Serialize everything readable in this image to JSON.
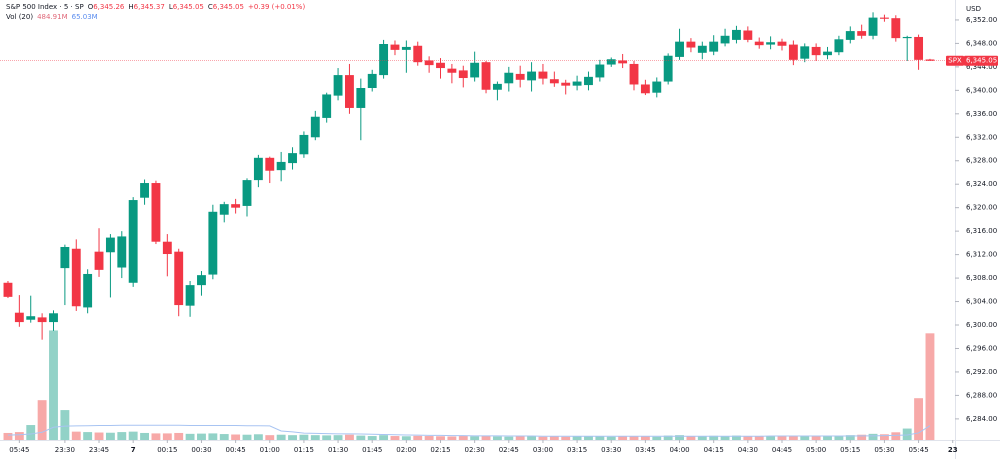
{
  "chart_data": {
    "type": "candlestick",
    "title": "S&P 500 Index · 5 · SP",
    "ohlc_header": [
      {
        "key": "O",
        "label": "6,345.26"
      },
      {
        "key": "H",
        "label": "6,345.37"
      },
      {
        "key": "L",
        "label": "6,345.05"
      },
      {
        "key": "C",
        "label": "6,345.05"
      }
    ],
    "change": "+0.39 (+0.01%)",
    "volume_label": "Vol (20)",
    "volume_value_label": "484.91M",
    "volume_ma_label": "65.03M",
    "currency": "USD",
    "price_tag": {
      "symbol": "SPX",
      "label": "6,345.05"
    },
    "up_color": "#089981",
    "down_color": "#f23645",
    "volume_up_color": "#92d2c7",
    "volume_down_color": "#f7a9a8",
    "volume_ma_color": "#a8c4f2",
    "open": [
      6307.2,
      6302.1,
      6300.9,
      6301.3,
      6300.5,
      6309.7,
      6313.0,
      6303.0,
      6312.5,
      6312.4,
      6309.8,
      6307.2,
      6321.7,
      6324.2,
      6314.2,
      6312.5,
      6303.3,
      6306.8,
      6308.6,
      6318.8,
      6320.6,
      6320.3,
      6324.7,
      6328.5,
      6326.4,
      6327.6,
      6329.1,
      6332.0,
      6335.3,
      6339.1,
      6342.6,
      6337.0,
      6340.4,
      6342.6,
      6347.8,
      6346.9,
      6347.6,
      6345.1,
      6344.7,
      6343.7,
      6343.4,
      6342.2,
      6344.8,
      6340.1,
      6341.2,
      6342.8,
      6341.7,
      6343.2,
      6341.9,
      6341.3,
      6340.8,
      6340.9,
      6342.2,
      6344.4,
      6345.1,
      6344.5,
      6341.0,
      6339.6,
      6341.5,
      6345.7,
      6348.3,
      6346.4,
      6346.6,
      6348.0,
      6348.6,
      6350.2,
      6348.3,
      6347.8,
      6348.3,
      6347.8,
      6345.4,
      6347.4,
      6346.0,
      6346.5,
      6348.6,
      6350.1,
      6349.3,
      6352.4,
      6352.3,
      6348.9,
      6349.1,
      6345.26
    ],
    "high": [
      6307.5,
      6305.1,
      6305.0,
      6302.0,
      6302.5,
      6313.7,
      6314.6,
      6309.5,
      6316.5,
      6315.5,
      6316.0,
      6321.8,
      6324.8,
      6324.6,
      6315.5,
      6313.0,
      6307.5,
      6309.2,
      6320.5,
      6321.0,
      6321.5,
      6325.0,
      6329.0,
      6328.7,
      6329.5,
      6330.3,
      6333.0,
      6336.5,
      6339.6,
      6343.8,
      6344.5,
      6342.0,
      6343.5,
      6348.6,
      6348.5,
      6348.5,
      6348.3,
      6345.8,
      6345.5,
      6344.5,
      6344.2,
      6346.6,
      6345.0,
      6341.5,
      6344.0,
      6344.2,
      6344.8,
      6344.5,
      6343.2,
      6341.8,
      6342.5,
      6343.2,
      6345.2,
      6345.6,
      6346.2,
      6345.0,
      6341.8,
      6342.2,
      6346.3,
      6350.5,
      6348.9,
      6348.3,
      6349.4,
      6350.5,
      6351.0,
      6350.9,
      6349.0,
      6349.2,
      6348.8,
      6348.5,
      6348.0,
      6348.0,
      6347.4,
      6349.3,
      6350.9,
      6351.2,
      6353.3,
      6352.9,
      6352.8,
      6349.3,
      6349.5,
      6345.37
    ],
    "low": [
      6304.6,
      6299.7,
      6300.4,
      6297.5,
      6299.0,
      6303.4,
      6302.4,
      6302.0,
      6308.2,
      6304.7,
      6308.0,
      6306.5,
      6320.5,
      6313.8,
      6308.3,
      6301.5,
      6301.4,
      6305.0,
      6307.8,
      6317.5,
      6319.0,
      6318.5,
      6323.5,
      6324.2,
      6324.5,
      6326.5,
      6328.5,
      6331.5,
      6334.5,
      6338.3,
      6336.0,
      6331.5,
      6339.8,
      6342.0,
      6346.0,
      6343.0,
      6344.2,
      6343.0,
      6342.0,
      6341.2,
      6340.5,
      6341.5,
      6339.5,
      6338.3,
      6339.8,
      6340.5,
      6339.8,
      6341.0,
      6340.6,
      6339.3,
      6340.0,
      6340.0,
      6341.5,
      6344.0,
      6343.8,
      6340.0,
      6339.2,
      6338.8,
      6341.0,
      6345.2,
      6346.5,
      6345.3,
      6346.0,
      6347.5,
      6348.0,
      6348.2,
      6347.1,
      6347.0,
      6346.8,
      6344.3,
      6344.8,
      6345.0,
      6345.3,
      6346.0,
      6348.0,
      6348.8,
      6348.7,
      6351.7,
      6348.3,
      6345.0,
      6343.5,
      6345.05
    ],
    "close": [
      6304.8,
      6300.5,
      6301.5,
      6300.5,
      6302.0,
      6313.3,
      6303.2,
      6308.7,
      6309.4,
      6314.9,
      6315.1,
      6321.3,
      6324.2,
      6314.2,
      6312.1,
      6303.4,
      6306.8,
      6308.5,
      6319.3,
      6320.6,
      6320.0,
      6324.7,
      6328.5,
      6326.3,
      6327.8,
      6329.3,
      6332.4,
      6335.5,
      6339.3,
      6342.6,
      6337.0,
      6340.4,
      6342.8,
      6347.9,
      6346.9,
      6347.4,
      6344.8,
      6344.3,
      6343.8,
      6343.0,
      6342.1,
      6344.7,
      6340.1,
      6341.1,
      6343.0,
      6341.8,
      6343.2,
      6342.0,
      6341.2,
      6340.8,
      6341.5,
      6342.3,
      6344.4,
      6345.3,
      6344.6,
      6341.0,
      6339.5,
      6341.5,
      6345.9,
      6348.3,
      6347.3,
      6347.6,
      6348.3,
      6349.3,
      6350.3,
      6348.6,
      6347.7,
      6348.2,
      6347.6,
      6345.2,
      6347.5,
      6346.0,
      6346.6,
      6348.7,
      6350.1,
      6349.3,
      6352.4,
      6352.2,
      6348.9,
      6349.1,
      6345.2,
      6345.05
    ],
    "volume": [
      32,
      36,
      68,
      181,
      498,
      136,
      38,
      36,
      34,
      33,
      36,
      38,
      32,
      30,
      30,
      32,
      28,
      29,
      30,
      27,
      25,
      24,
      26,
      22,
      24,
      22,
      24,
      22,
      21,
      22,
      24,
      20,
      18,
      22,
      18,
      17,
      19,
      18,
      17,
      16,
      18,
      17,
      19,
      16,
      15,
      17,
      16,
      15,
      17,
      15,
      16,
      17,
      16,
      15,
      17,
      18,
      16,
      15,
      20,
      22,
      18,
      17,
      19,
      18,
      20,
      18,
      17,
      18,
      17,
      19,
      18,
      17,
      18,
      20,
      22,
      24,
      28,
      26,
      35,
      52,
      190,
      484.91
    ],
    "volume_ma": [
      22,
      24,
      27,
      35,
      58,
      63,
      64,
      65,
      66,
      66,
      67,
      67,
      67,
      67,
      67,
      67,
      66,
      66,
      66,
      66,
      66,
      65,
      65,
      64,
      41,
      37,
      31,
      30,
      29,
      28,
      28,
      27,
      26,
      25,
      24,
      23,
      22,
      21,
      21,
      20,
      20,
      19,
      19,
      19,
      18,
      18,
      18,
      17,
      17,
      17,
      17,
      17,
      17,
      17,
      17,
      17,
      17,
      17,
      17,
      17,
      17,
      17,
      17,
      17,
      17,
      17,
      17,
      18,
      18,
      18,
      18,
      18,
      18,
      18,
      18,
      19,
      19,
      20,
      21,
      23,
      32,
      65.03
    ],
    "xlim": [
      -0.7,
      83.2
    ],
    "xticks": [
      {
        "value": 1,
        "label": "05:45"
      },
      {
        "value": 5,
        "label": "23:30"
      },
      {
        "value": 8,
        "label": "23:45"
      },
      {
        "value": 11,
        "label": "7"
      },
      {
        "value": 14,
        "label": "00:15"
      },
      {
        "value": 17,
        "label": "00:30"
      },
      {
        "value": 20,
        "label": "00:45"
      },
      {
        "value": 23,
        "label": "01:00"
      },
      {
        "value": 26,
        "label": "01:15"
      },
      {
        "value": 29,
        "label": "01:30"
      },
      {
        "value": 32,
        "label": "01:45"
      },
      {
        "value": 35,
        "label": "02:00"
      },
      {
        "value": 38,
        "label": "02:15"
      },
      {
        "value": 41,
        "label": "02:30"
      },
      {
        "value": 44,
        "label": "02:45"
      },
      {
        "value": 47,
        "label": "03:00"
      },
      {
        "value": 50,
        "label": "03:15"
      },
      {
        "value": 53,
        "label": "03:30"
      },
      {
        "value": 56,
        "label": "03:45"
      },
      {
        "value": 59,
        "label": "04:00"
      },
      {
        "value": 62,
        "label": "04:15"
      },
      {
        "value": 65,
        "label": "04:30"
      },
      {
        "value": 68,
        "label": "04:45"
      },
      {
        "value": 71,
        "label": "05:00"
      },
      {
        "value": 74,
        "label": "05:15"
      },
      {
        "value": 77,
        "label": "05:30"
      },
      {
        "value": 80,
        "label": "05:45"
      },
      {
        "value": 83,
        "label": "23"
      }
    ],
    "ylim": [
      6280.4,
      6355.4
    ],
    "yticks": [
      {
        "value": 6284,
        "label": "6,284.00"
      },
      {
        "value": 6288,
        "label": "6,288.00"
      },
      {
        "value": 6292,
        "label": "6,292.00"
      },
      {
        "value": 6296,
        "label": "6,296.00"
      },
      {
        "value": 6300,
        "label": "6,300.00"
      },
      {
        "value": 6304,
        "label": "6,304.00"
      },
      {
        "value": 6308,
        "label": "6,308.00"
      },
      {
        "value": 6312,
        "label": "6,312.00"
      },
      {
        "value": 6316,
        "label": "6,316.00"
      },
      {
        "value": 6320,
        "label": "6,320.00"
      },
      {
        "value": 6324,
        "label": "6,324.00"
      },
      {
        "value": 6328,
        "label": "6,328.00"
      },
      {
        "value": 6332,
        "label": "6,332.00"
      },
      {
        "value": 6336,
        "label": "6,336.00"
      },
      {
        "value": 6340,
        "label": "6,340.00"
      },
      {
        "value": 6344,
        "label": "6,344.00"
      },
      {
        "value": 6348,
        "label": "6,348.00"
      },
      {
        "value": 6352,
        "label": "6,352.00"
      }
    ],
    "y2lim": [
      0,
      2000
    ]
  }
}
